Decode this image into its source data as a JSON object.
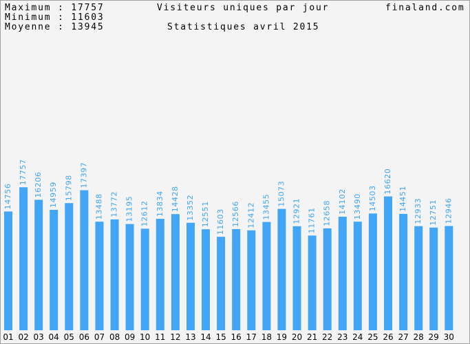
{
  "header": {
    "max_label": "Maximum",
    "max_value": "17757",
    "min_label": "Minimum",
    "min_value": "11603",
    "avg_label": "Moyenne",
    "avg_value": "13945",
    "separator": ":",
    "title": "Visiteurs uniques par jour",
    "subtitle": "Statistiques avril 2015",
    "site": "finaland.com"
  },
  "chart_data": {
    "type": "bar",
    "title": "Visiteurs uniques par jour",
    "subtitle": "Statistiques avril 2015",
    "categories": [
      "01",
      "02",
      "03",
      "04",
      "05",
      "06",
      "07",
      "08",
      "09",
      "10",
      "11",
      "12",
      "13",
      "14",
      "15",
      "16",
      "17",
      "18",
      "19",
      "20",
      "21",
      "22",
      "23",
      "24",
      "25",
      "26",
      "27",
      "28",
      "29",
      "30"
    ],
    "values": [
      14756,
      17757,
      16206,
      14959,
      15798,
      17397,
      13488,
      13772,
      13195,
      12612,
      13834,
      14428,
      13352,
      12551,
      11603,
      12566,
      12412,
      13455,
      15073,
      12921,
      11761,
      12658,
      14102,
      13490,
      14503,
      16620,
      14451,
      12933,
      12751,
      12946
    ],
    "ylim": [
      0,
      40000
    ],
    "bar_color": "#42a5f5",
    "grid": false,
    "legend": "none"
  }
}
